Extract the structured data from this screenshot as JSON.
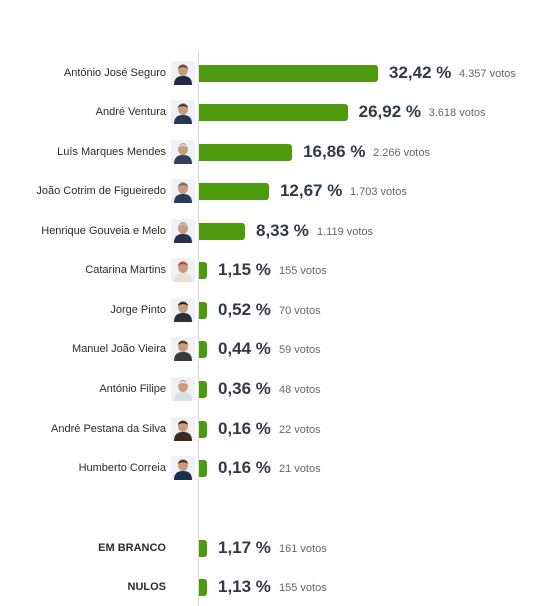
{
  "chart_data": {
    "type": "bar",
    "orientation": "horizontal",
    "categories": [
      "António José Seguro",
      "André Ventura",
      "Luís Marques Mendes",
      "João Cotrim de Figueiredo",
      "Henrique Gouveia e Melo",
      "Catarina Martins",
      "Jorge Pinto",
      "Manuel João Vieira",
      "António Filipe",
      "André Pestana da Silva",
      "Humberto Correia",
      "EM BRANCO",
      "NULOS"
    ],
    "values": [
      32.42,
      26.92,
      16.86,
      12.67,
      8.33,
      1.15,
      0.52,
      0.44,
      0.36,
      0.16,
      0.16,
      1.17,
      1.13
    ],
    "value_labels": [
      "32,42 %",
      "26,92 %",
      "16,86 %",
      "12,67 %",
      "8,33 %",
      "1,15 %",
      "0,52 %",
      "0,44 %",
      "0,36 %",
      "0,16 %",
      "0,16 %",
      "1,17 %",
      "1,13 %"
    ],
    "votes": [
      4357,
      3618,
      2266,
      1703,
      1119,
      155,
      70,
      59,
      48,
      22,
      21,
      161,
      155
    ],
    "vote_labels": [
      "4.357 votos",
      "3.618 votos",
      "2.266 votos",
      "1.703 votos",
      "1.119 votos",
      "155 votos",
      "70 votos",
      "59 votos",
      "48 votos",
      "22 votos",
      "21 votos",
      "161 votos",
      "155 votos"
    ],
    "has_photo": [
      true,
      true,
      true,
      true,
      true,
      true,
      true,
      true,
      true,
      true,
      true,
      false,
      false
    ],
    "label_bold": [
      false,
      false,
      false,
      false,
      false,
      false,
      false,
      false,
      false,
      false,
      false,
      true,
      true
    ],
    "title": "",
    "xlabel": "",
    "ylabel": "",
    "grid": false,
    "legend": "none",
    "colors": {
      "bar": "#4e9a0e",
      "value_text": "#333a45",
      "votes_text": "#666666",
      "label_text": "#2b2b2b"
    }
  }
}
